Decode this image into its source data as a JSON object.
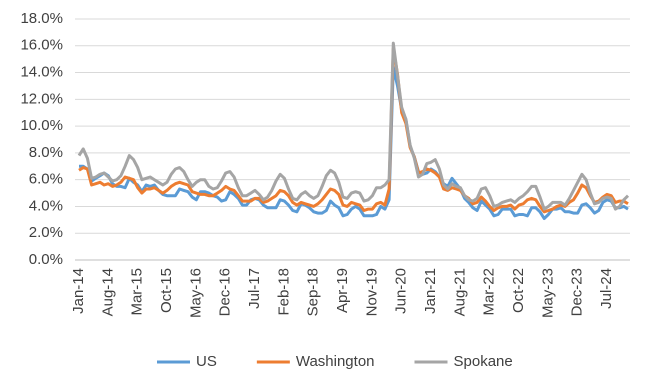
{
  "chart_data": {
    "type": "line",
    "categories": [
      "Jan-14",
      null,
      null,
      null,
      null,
      null,
      null,
      "Aug-14",
      null,
      null,
      null,
      null,
      null,
      null,
      "Mar-15",
      null,
      null,
      null,
      null,
      null,
      null,
      "Oct-15",
      null,
      null,
      null,
      null,
      null,
      null,
      "May-16",
      null,
      null,
      null,
      null,
      null,
      null,
      "Dec-16",
      null,
      null,
      null,
      null,
      null,
      null,
      "Jul-17",
      null,
      null,
      null,
      null,
      null,
      null,
      "Feb-18",
      null,
      null,
      null,
      null,
      null,
      null,
      "Sep-18",
      null,
      null,
      null,
      null,
      null,
      null,
      "Apr-19",
      null,
      null,
      null,
      null,
      null,
      null,
      "Nov-19",
      null,
      null,
      null,
      null,
      null,
      null,
      "Jun-20",
      null,
      null,
      null,
      null,
      null,
      null,
      "Jan-21",
      null,
      null,
      null,
      null,
      null,
      null,
      "Aug-21",
      null,
      null,
      null,
      null,
      null,
      null,
      "Mar-22",
      null,
      null,
      null,
      null,
      null,
      null,
      "Oct-22",
      null,
      null,
      null,
      null,
      null,
      null,
      "May-23",
      null,
      null,
      null,
      null,
      null,
      null,
      "Dec-23",
      null,
      null,
      null,
      null,
      null,
      null,
      "Jul-24",
      null,
      null,
      null,
      null,
      null
    ],
    "series": [
      {
        "name": "US",
        "color": "#5b9bd5",
        "values": [
          7.0,
          7.0,
          6.8,
          5.9,
          6.1,
          6.3,
          6.5,
          6.3,
          5.7,
          5.5,
          5.5,
          5.4,
          6.1,
          5.8,
          5.6,
          5.1,
          5.6,
          5.5,
          5.6,
          5.2,
          4.9,
          4.8,
          4.8,
          4.8,
          5.3,
          5.2,
          5.1,
          4.7,
          4.5,
          5.1,
          5.1,
          5.0,
          4.8,
          4.7,
          4.4,
          4.5,
          5.1,
          4.9,
          4.6,
          4.1,
          4.1,
          4.5,
          4.6,
          4.5,
          4.1,
          3.9,
          3.9,
          3.9,
          4.5,
          4.4,
          4.1,
          3.7,
          3.6,
          4.2,
          4.1,
          3.9,
          3.6,
          3.5,
          3.5,
          3.7,
          4.4,
          4.1,
          3.9,
          3.3,
          3.4,
          3.8,
          4.0,
          3.8,
          3.3,
          3.3,
          3.3,
          3.4,
          4.0,
          3.8,
          4.5,
          14.4,
          13.0,
          11.2,
          10.5,
          8.5,
          7.7,
          6.6,
          6.4,
          6.5,
          6.8,
          6.6,
          6.2,
          5.7,
          5.5,
          6.1,
          5.7,
          5.3,
          4.6,
          4.3,
          3.9,
          3.7,
          4.4,
          4.1,
          3.8,
          3.3,
          3.4,
          3.8,
          3.8,
          3.8,
          3.3,
          3.4,
          3.4,
          3.3,
          3.9,
          3.9,
          3.6,
          3.1,
          3.4,
          3.8,
          3.8,
          3.9,
          3.6,
          3.6,
          3.5,
          3.5,
          4.1,
          4.2,
          3.9,
          3.5,
          3.7,
          4.3,
          4.5,
          4.4,
          3.9,
          3.9,
          4.0,
          3.8
        ]
      },
      {
        "name": "Washington",
        "color": "#ed7d31",
        "values": [
          6.7,
          6.9,
          6.8,
          5.6,
          5.7,
          5.8,
          5.6,
          5.7,
          5.5,
          5.6,
          5.8,
          6.2,
          6.1,
          6.0,
          5.4,
          5.0,
          5.3,
          5.3,
          5.4,
          5.2,
          5.0,
          5.2,
          5.5,
          5.7,
          5.8,
          5.7,
          5.6,
          5.1,
          5.0,
          4.9,
          4.9,
          4.8,
          4.8,
          5.0,
          5.2,
          5.5,
          5.3,
          5.2,
          4.8,
          4.4,
          4.4,
          4.4,
          4.6,
          4.6,
          4.3,
          4.4,
          4.6,
          4.8,
          5.2,
          5.1,
          4.8,
          4.3,
          4.1,
          4.3,
          4.2,
          4.1,
          4.0,
          4.2,
          4.5,
          4.9,
          5.3,
          5.2,
          4.9,
          4.1,
          4.0,
          4.3,
          4.2,
          4.1,
          3.7,
          3.8,
          3.8,
          4.2,
          4.3,
          4.1,
          5.3,
          15.8,
          13.9,
          11.0,
          10.2,
          8.4,
          7.7,
          6.5,
          6.6,
          6.8,
          6.7,
          6.5,
          6.2,
          5.3,
          5.2,
          5.4,
          5.3,
          5.2,
          4.8,
          4.6,
          4.2,
          4.3,
          4.7,
          4.4,
          4.0,
          3.7,
          3.9,
          4.0,
          4.0,
          4.1,
          3.8,
          4.1,
          4.2,
          4.5,
          4.6,
          4.5,
          4.0,
          3.6,
          3.7,
          3.8,
          4.0,
          4.1,
          4.0,
          4.3,
          4.5,
          5.0,
          5.6,
          5.4,
          4.8,
          4.3,
          4.4,
          4.7,
          4.9,
          4.8,
          4.3,
          4.4,
          4.4,
          4.2
        ]
      },
      {
        "name": "Spokane",
        "color": "#a5a5a5",
        "values": [
          7.8,
          8.3,
          7.6,
          6.1,
          6.2,
          6.4,
          6.5,
          6.2,
          5.9,
          6.0,
          6.3,
          7.0,
          7.8,
          7.5,
          6.9,
          6.0,
          6.1,
          6.2,
          6.0,
          5.8,
          5.6,
          5.8,
          6.4,
          6.8,
          6.9,
          6.6,
          6.0,
          5.5,
          5.8,
          6.0,
          6.0,
          5.5,
          5.3,
          5.4,
          5.9,
          6.5,
          6.6,
          6.2,
          5.4,
          4.8,
          4.8,
          5.0,
          5.2,
          4.9,
          4.5,
          4.7,
          5.2,
          5.9,
          6.4,
          6.1,
          5.3,
          4.6,
          4.5,
          4.9,
          5.1,
          4.8,
          4.6,
          4.8,
          5.5,
          6.3,
          6.7,
          6.5,
          5.8,
          4.7,
          4.6,
          5.0,
          5.1,
          5.0,
          4.4,
          4.5,
          4.8,
          5.4,
          5.4,
          5.6,
          6.0,
          16.2,
          13.8,
          11.4,
          10.5,
          8.6,
          7.6,
          6.2,
          6.4,
          7.2,
          7.3,
          7.5,
          6.8,
          5.6,
          5.3,
          5.7,
          5.5,
          5.4,
          4.8,
          4.5,
          4.4,
          4.6,
          5.3,
          5.4,
          4.8,
          4.0,
          4.1,
          4.3,
          4.4,
          4.5,
          4.3,
          4.6,
          4.8,
          5.1,
          5.5,
          5.5,
          4.7,
          3.8,
          4.0,
          4.3,
          4.3,
          4.3,
          4.1,
          4.6,
          5.2,
          5.8,
          6.4,
          6.0,
          5.0,
          4.2,
          4.3,
          4.6,
          4.7,
          4.6,
          3.8,
          4.0,
          4.5,
          4.8
        ]
      }
    ],
    "ylim": [
      0,
      18
    ],
    "yticks": [
      {
        "value": 0,
        "label": "0.0%"
      },
      {
        "value": 2,
        "label": "2.0%"
      },
      {
        "value": 4,
        "label": "4.0%"
      },
      {
        "value": 6,
        "label": "6.0%"
      },
      {
        "value": 8,
        "label": "8.0%"
      },
      {
        "value": 10,
        "label": "10.0%"
      },
      {
        "value": 12,
        "label": "12.0%"
      },
      {
        "value": 14,
        "label": "14.0%"
      },
      {
        "value": 16,
        "label": "16.0%"
      },
      {
        "value": 18,
        "label": "18.0%"
      }
    ],
    "grid": true,
    "legend": "bottom"
  }
}
